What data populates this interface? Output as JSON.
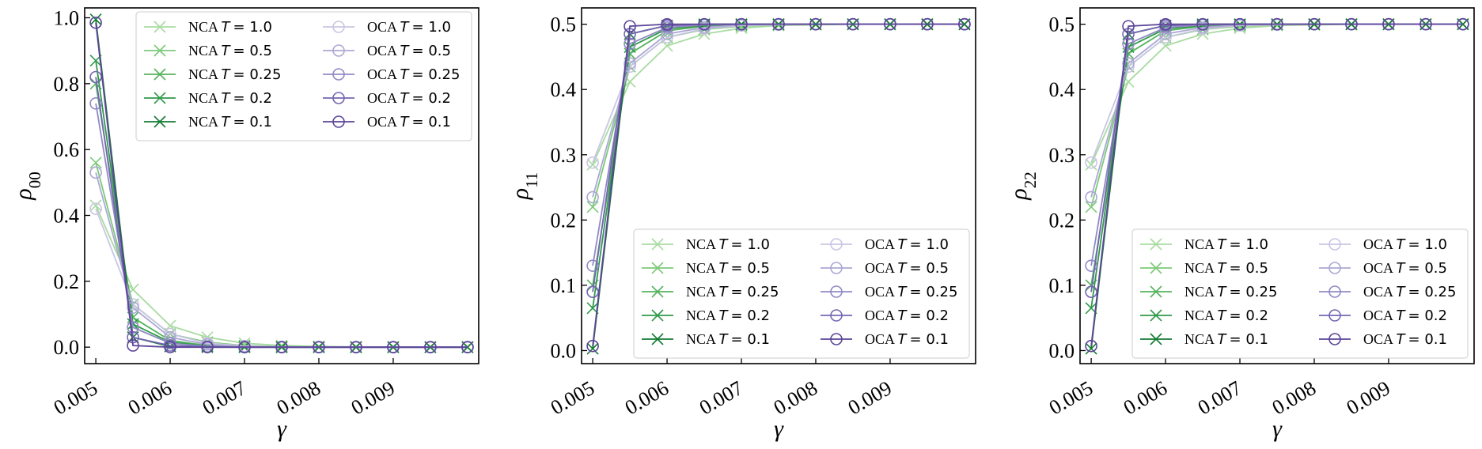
{
  "legend_entries": [
    {
      "key": "nca_1.0",
      "prefix": "NCA ",
      "param": "T",
      "value": "= 1.0",
      "color": "#a8dba1",
      "marker": "x"
    },
    {
      "key": "nca_0.5",
      "prefix": "NCA ",
      "param": "T",
      "value": "= 0.5",
      "color": "#7cc978",
      "marker": "x"
    },
    {
      "key": "nca_0.25",
      "prefix": "NCA ",
      "param": "T",
      "value": "= 0.25",
      "color": "#54b35c",
      "marker": "x"
    },
    {
      "key": "nca_0.2",
      "prefix": "NCA ",
      "param": "T",
      "value": "= 0.2",
      "color": "#2e9a49",
      "marker": "x"
    },
    {
      "key": "nca_0.1",
      "prefix": "NCA ",
      "param": "T",
      "value": "= 0.1",
      "color": "#137b33",
      "marker": "x"
    },
    {
      "key": "oca_1.0",
      "prefix": "OCA ",
      "param": "T",
      "value": "= 1.0",
      "color": "#c9c6e3",
      "marker": "o"
    },
    {
      "key": "oca_0.5",
      "prefix": "OCA ",
      "param": "T",
      "value": "= 0.5",
      "color": "#aca7d3",
      "marker": "o"
    },
    {
      "key": "oca_0.25",
      "prefix": "OCA ",
      "param": "T",
      "value": "= 0.25",
      "color": "#9089c4",
      "marker": "o"
    },
    {
      "key": "oca_0.2",
      "prefix": "OCA ",
      "param": "T",
      "value": "= 0.2",
      "color": "#7566b3",
      "marker": "o"
    },
    {
      "key": "oca_0.1",
      "prefix": "OCA ",
      "param": "T",
      "value": "= 0.1",
      "color": "#5c4599",
      "marker": "o"
    }
  ],
  "chart_data": [
    {
      "type": "line",
      "ylabel_base": "ρ",
      "ylabel_sub": "00",
      "xlabel": "γ",
      "xlim": [
        0.00485,
        0.01015
      ],
      "ylim": [
        -0.05,
        1.03
      ],
      "xticks": [
        0.005,
        0.006,
        0.007,
        0.008,
        0.009
      ],
      "xtick_labels": [
        "0.005",
        "0.006",
        "0.007",
        "0.008",
        "0.009"
      ],
      "yticks": [
        0.0,
        0.2,
        0.4,
        0.6,
        0.8,
        1.0
      ],
      "ytick_labels": [
        "0.0",
        "0.2",
        "0.4",
        "0.6",
        "0.8",
        "1.0"
      ],
      "legend_position": "top-right",
      "x": [
        0.005,
        0.0055,
        0.006,
        0.0065,
        0.007,
        0.0075,
        0.008,
        0.0085,
        0.009,
        0.0095,
        0.01
      ],
      "series": [
        {
          "key": "nca_1.0",
          "values": [
            0.43,
            0.175,
            0.065,
            0.03,
            0.012,
            0.005,
            0.002,
            0.001,
            0.0,
            0.0,
            0.0
          ]
        },
        {
          "key": "nca_0.5",
          "values": [
            0.56,
            0.13,
            0.04,
            0.015,
            0.005,
            0.002,
            0.001,
            0.0,
            0.0,
            0.0,
            0.0
          ]
        },
        {
          "key": "nca_0.25",
          "values": [
            0.8,
            0.09,
            0.02,
            0.005,
            0.001,
            0.0,
            0.0,
            0.0,
            0.0,
            0.0,
            0.0
          ]
        },
        {
          "key": "nca_0.2",
          "values": [
            0.87,
            0.07,
            0.015,
            0.003,
            0.001,
            0.0,
            0.0,
            0.0,
            0.0,
            0.0,
            0.0
          ]
        },
        {
          "key": "nca_0.1",
          "values": [
            0.995,
            0.03,
            0.002,
            0.0,
            0.0,
            0.0,
            0.0,
            0.0,
            0.0,
            0.0,
            0.0
          ]
        },
        {
          "key": "oca_1.0",
          "values": [
            0.42,
            0.13,
            0.04,
            0.012,
            0.004,
            0.001,
            0.0,
            0.0,
            0.0,
            0.0,
            0.0
          ]
        },
        {
          "key": "oca_0.5",
          "values": [
            0.53,
            0.12,
            0.03,
            0.008,
            0.002,
            0.0,
            0.0,
            0.0,
            0.0,
            0.0,
            0.0
          ]
        },
        {
          "key": "oca_0.25",
          "values": [
            0.74,
            0.06,
            0.012,
            0.002,
            0.0,
            0.0,
            0.0,
            0.0,
            0.0,
            0.0,
            0.0
          ]
        },
        {
          "key": "oca_0.2",
          "values": [
            0.82,
            0.03,
            0.005,
            0.001,
            0.0,
            0.0,
            0.0,
            0.0,
            0.0,
            0.0,
            0.0
          ]
        },
        {
          "key": "oca_0.1",
          "values": [
            0.985,
            0.005,
            0.0,
            0.0,
            0.0,
            0.0,
            0.0,
            0.0,
            0.0,
            0.0,
            0.0
          ]
        }
      ]
    },
    {
      "type": "line",
      "ylabel_base": "ρ",
      "ylabel_sub": "11",
      "xlabel": "γ",
      "xlim": [
        0.00485,
        0.01015
      ],
      "ylim": [
        -0.02,
        0.525
      ],
      "xticks": [
        0.005,
        0.006,
        0.007,
        0.008,
        0.009
      ],
      "xtick_labels": [
        "0.005",
        "0.006",
        "0.007",
        "0.008",
        "0.009"
      ],
      "yticks": [
        0.0,
        0.1,
        0.2,
        0.3,
        0.4,
        0.5
      ],
      "ytick_labels": [
        "0.0",
        "0.1",
        "0.2",
        "0.3",
        "0.4",
        "0.5"
      ],
      "legend_position": "bottom-right",
      "x": [
        0.005,
        0.0055,
        0.006,
        0.0065,
        0.007,
        0.0075,
        0.008,
        0.0085,
        0.009,
        0.0095,
        0.01
      ],
      "series": [
        {
          "key": "nca_1.0",
          "values": [
            0.285,
            0.412,
            0.467,
            0.485,
            0.494,
            0.498,
            0.499,
            0.5,
            0.5,
            0.5,
            0.5
          ]
        },
        {
          "key": "nca_0.5",
          "values": [
            0.22,
            0.435,
            0.48,
            0.492,
            0.497,
            0.499,
            0.5,
            0.5,
            0.5,
            0.5,
            0.5
          ]
        },
        {
          "key": "nca_0.25",
          "values": [
            0.1,
            0.455,
            0.49,
            0.497,
            0.499,
            0.5,
            0.5,
            0.5,
            0.5,
            0.5,
            0.5
          ]
        },
        {
          "key": "nca_0.2",
          "values": [
            0.065,
            0.465,
            0.493,
            0.498,
            0.5,
            0.5,
            0.5,
            0.5,
            0.5,
            0.5,
            0.5
          ]
        },
        {
          "key": "nca_0.1",
          "values": [
            0.003,
            0.485,
            0.498,
            0.5,
            0.5,
            0.5,
            0.5,
            0.5,
            0.5,
            0.5,
            0.5
          ]
        },
        {
          "key": "oca_1.0",
          "values": [
            0.288,
            0.435,
            0.48,
            0.493,
            0.498,
            0.499,
            0.5,
            0.5,
            0.5,
            0.5,
            0.5
          ]
        },
        {
          "key": "oca_0.5",
          "values": [
            0.235,
            0.44,
            0.485,
            0.495,
            0.499,
            0.5,
            0.5,
            0.5,
            0.5,
            0.5,
            0.5
          ]
        },
        {
          "key": "oca_0.25",
          "values": [
            0.13,
            0.47,
            0.495,
            0.499,
            0.5,
            0.5,
            0.5,
            0.5,
            0.5,
            0.5,
            0.5
          ]
        },
        {
          "key": "oca_0.2",
          "values": [
            0.09,
            0.485,
            0.498,
            0.5,
            0.5,
            0.5,
            0.5,
            0.5,
            0.5,
            0.5,
            0.5
          ]
        },
        {
          "key": "oca_0.1",
          "values": [
            0.007,
            0.497,
            0.5,
            0.5,
            0.5,
            0.5,
            0.5,
            0.5,
            0.5,
            0.5,
            0.5
          ]
        }
      ]
    },
    {
      "type": "line",
      "ylabel_base": "ρ",
      "ylabel_sub": "22",
      "xlabel": "γ",
      "xlim": [
        0.00485,
        0.01015
      ],
      "ylim": [
        -0.02,
        0.525
      ],
      "xticks": [
        0.005,
        0.006,
        0.007,
        0.008,
        0.009
      ],
      "xtick_labels": [
        "0.005",
        "0.006",
        "0.007",
        "0.008",
        "0.009"
      ],
      "yticks": [
        0.0,
        0.1,
        0.2,
        0.3,
        0.4,
        0.5
      ],
      "ytick_labels": [
        "0.0",
        "0.1",
        "0.2",
        "0.3",
        "0.4",
        "0.5"
      ],
      "legend_position": "bottom-right",
      "x": [
        0.005,
        0.0055,
        0.006,
        0.0065,
        0.007,
        0.0075,
        0.008,
        0.0085,
        0.009,
        0.0095,
        0.01
      ],
      "series": [
        {
          "key": "nca_1.0",
          "values": [
            0.285,
            0.412,
            0.467,
            0.485,
            0.494,
            0.498,
            0.499,
            0.5,
            0.5,
            0.5,
            0.5
          ]
        },
        {
          "key": "nca_0.5",
          "values": [
            0.22,
            0.435,
            0.48,
            0.492,
            0.497,
            0.499,
            0.5,
            0.5,
            0.5,
            0.5,
            0.5
          ]
        },
        {
          "key": "nca_0.25",
          "values": [
            0.1,
            0.455,
            0.49,
            0.497,
            0.499,
            0.5,
            0.5,
            0.5,
            0.5,
            0.5,
            0.5
          ]
        },
        {
          "key": "nca_0.2",
          "values": [
            0.065,
            0.465,
            0.493,
            0.498,
            0.5,
            0.5,
            0.5,
            0.5,
            0.5,
            0.5,
            0.5
          ]
        },
        {
          "key": "nca_0.1",
          "values": [
            0.003,
            0.485,
            0.498,
            0.5,
            0.5,
            0.5,
            0.5,
            0.5,
            0.5,
            0.5,
            0.5
          ]
        },
        {
          "key": "oca_1.0",
          "values": [
            0.288,
            0.435,
            0.48,
            0.493,
            0.498,
            0.499,
            0.5,
            0.5,
            0.5,
            0.5,
            0.5
          ]
        },
        {
          "key": "oca_0.5",
          "values": [
            0.235,
            0.44,
            0.485,
            0.495,
            0.499,
            0.5,
            0.5,
            0.5,
            0.5,
            0.5,
            0.5
          ]
        },
        {
          "key": "oca_0.25",
          "values": [
            0.13,
            0.47,
            0.495,
            0.499,
            0.5,
            0.5,
            0.5,
            0.5,
            0.5,
            0.5,
            0.5
          ]
        },
        {
          "key": "oca_0.2",
          "values": [
            0.09,
            0.485,
            0.498,
            0.5,
            0.5,
            0.5,
            0.5,
            0.5,
            0.5,
            0.5,
            0.5
          ]
        },
        {
          "key": "oca_0.1",
          "values": [
            0.007,
            0.497,
            0.5,
            0.5,
            0.5,
            0.5,
            0.5,
            0.5,
            0.5,
            0.5,
            0.5
          ]
        }
      ]
    }
  ]
}
